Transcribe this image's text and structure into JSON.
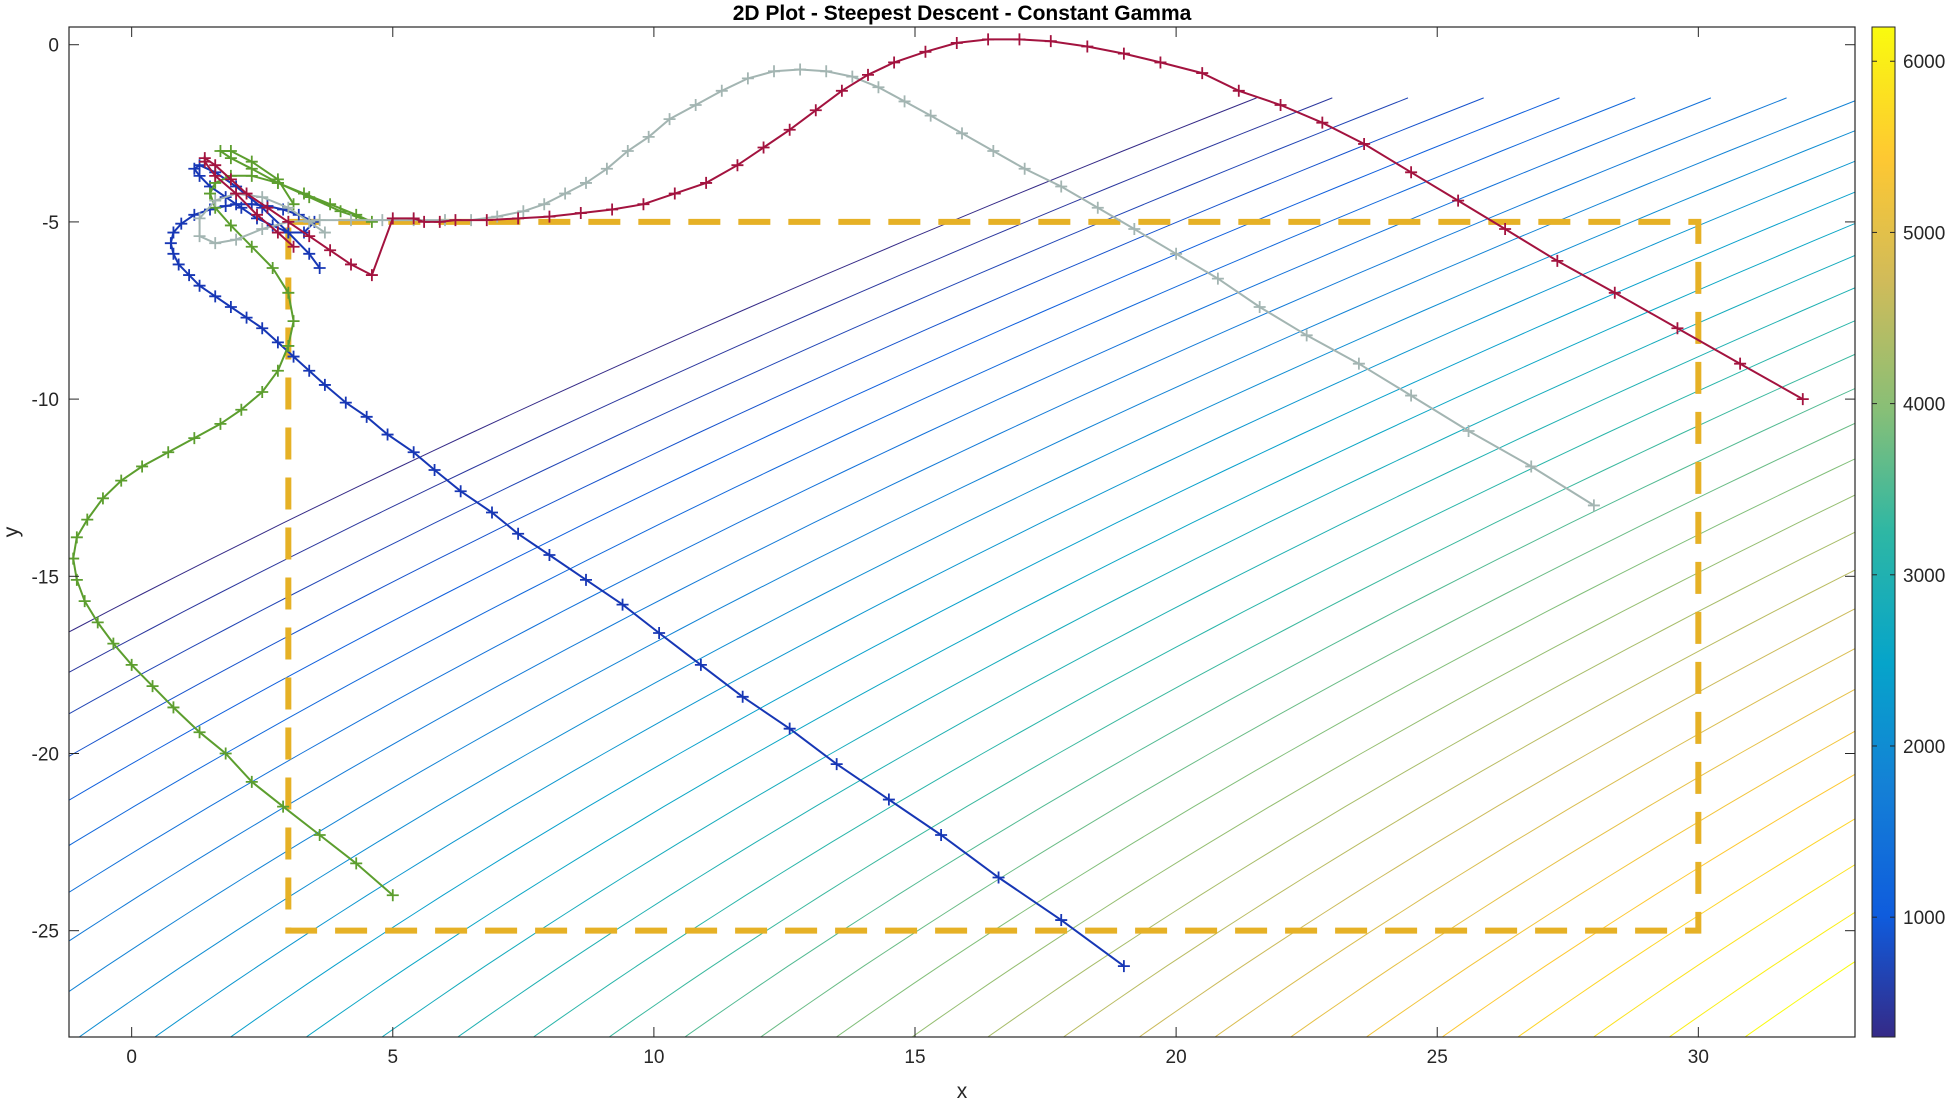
{
  "chart_data": {
    "type": "line",
    "title": "2D Plot - Steepest Descent - Constant Gamma",
    "xlabel": "x",
    "ylabel": "y",
    "xlim": [
      -1.2,
      33
    ],
    "ylim": [
      -28,
      0.5
    ],
    "xticks": [
      "0",
      "5",
      "10",
      "15",
      "20",
      "25",
      "30"
    ],
    "yticks": [
      "0",
      "-5",
      "-10",
      "-15",
      "-20",
      "-25"
    ],
    "grid": false,
    "legend": "none",
    "contour": {
      "colormap": "parula",
      "colorbar_ticks": [
        "1000",
        "2000",
        "3000",
        "4000",
        "5000",
        "6000"
      ],
      "colorbar_range": [
        300,
        6200
      ],
      "levels": 32
    },
    "constraint_box": {
      "x": [
        3,
        30
      ],
      "y": [
        -25,
        -5
      ],
      "color": "#e6b126",
      "style": "dashed"
    },
    "series": [
      {
        "color": "#1737b5",
        "marker": "+",
        "x": [
          19,
          17.8,
          16.6,
          15.5,
          14.5,
          13.5,
          12.6,
          11.7,
          10.9,
          10.1,
          9.4,
          8.7,
          8.0,
          7.4,
          6.9,
          6.3,
          5.8,
          5.4,
          4.9,
          4.5,
          4.1,
          3.7,
          3.4,
          3.1,
          2.8,
          2.5,
          2.2,
          1.9,
          1.6,
          1.3,
          1.1,
          0.9,
          0.8,
          0.75,
          0.8,
          0.95,
          1.2,
          1.5,
          1.8,
          2.0,
          2.3,
          2.6,
          2.9,
          3.2,
          3.5,
          3.3,
          3.0,
          2.7,
          2.4,
          2.1,
          1.8,
          1.5,
          1.3,
          1.2,
          1.3,
          1.6,
          2.0,
          2.5,
          3.0,
          3.4,
          3.6
        ],
        "y": [
          -26,
          -24.7,
          -23.5,
          -22.3,
          -21.3,
          -20.3,
          -19.3,
          -18.4,
          -17.5,
          -16.6,
          -15.8,
          -15.1,
          -14.4,
          -13.8,
          -13.2,
          -12.6,
          -12.0,
          -11.5,
          -11.0,
          -10.5,
          -10.1,
          -9.6,
          -9.2,
          -8.8,
          -8.4,
          -8.0,
          -7.7,
          -7.4,
          -7.1,
          -6.8,
          -6.5,
          -6.2,
          -5.9,
          -5.6,
          -5.3,
          -5.05,
          -4.8,
          -4.65,
          -4.55,
          -4.5,
          -4.5,
          -4.55,
          -4.65,
          -4.8,
          -5.0,
          -5.3,
          -5.3,
          -5.1,
          -4.9,
          -4.6,
          -4.3,
          -4.0,
          -3.7,
          -3.5,
          -3.4,
          -3.6,
          -4.0,
          -4.6,
          -5.3,
          -5.9,
          -6.3
        ]
      },
      {
        "color": "#5c9e2e",
        "marker": "+",
        "x": [
          5,
          4.3,
          3.6,
          2.9,
          2.3,
          1.8,
          1.3,
          0.8,
          0.4,
          0.0,
          -0.35,
          -0.65,
          -0.9,
          -1.05,
          -1.12,
          -1.05,
          -0.85,
          -0.55,
          -0.2,
          0.2,
          0.7,
          1.2,
          1.7,
          2.1,
          2.5,
          2.8,
          3.0,
          3.1,
          3.0,
          2.7,
          2.3,
          1.9,
          1.6,
          1.5,
          1.6,
          1.9,
          2.3,
          2.8,
          3.3,
          3.8,
          4.3,
          4.6,
          4.0,
          3.4,
          2.8,
          2.3,
          1.9,
          1.7,
          1.9,
          2.3,
          2.8,
          3.1
        ],
        "y": [
          -24,
          -23.1,
          -22.3,
          -21.5,
          -20.8,
          -20.0,
          -19.4,
          -18.7,
          -18.1,
          -17.5,
          -16.9,
          -16.3,
          -15.7,
          -15.1,
          -14.5,
          -13.9,
          -13.4,
          -12.8,
          -12.3,
          -11.9,
          -11.5,
          -11.1,
          -10.7,
          -10.3,
          -9.8,
          -9.2,
          -8.5,
          -7.8,
          -7.0,
          -6.3,
          -5.7,
          -5.1,
          -4.6,
          -4.2,
          -3.9,
          -3.7,
          -3.7,
          -3.9,
          -4.2,
          -4.5,
          -4.8,
          -5.0,
          -4.7,
          -4.3,
          -3.9,
          -3.5,
          -3.2,
          -3.0,
          -3.0,
          -3.3,
          -3.8,
          -4.5
        ]
      },
      {
        "color": "#a3b5b2",
        "marker": "+",
        "x": [
          28,
          26.8,
          25.6,
          24.5,
          23.5,
          22.5,
          21.6,
          20.8,
          20.0,
          19.2,
          18.5,
          17.8,
          17.1,
          16.5,
          15.9,
          15.3,
          14.8,
          14.3,
          13.8,
          13.3,
          12.8,
          12.3,
          11.8,
          11.3,
          10.8,
          10.3,
          9.9,
          9.5,
          9.1,
          8.7,
          8.3,
          7.9,
          7.5,
          7.0,
          6.5,
          6.0,
          5.4,
          4.8,
          4.2,
          3.6,
          3.0,
          2.5,
          2.0,
          1.6,
          1.3,
          1.3,
          1.6,
          2.0,
          2.5,
          3.0,
          3.4,
          3.7
        ],
        "y": [
          -13,
          -11.9,
          -10.9,
          -9.9,
          -9.0,
          -8.2,
          -7.4,
          -6.6,
          -5.9,
          -5.2,
          -4.6,
          -4.0,
          -3.5,
          -3.0,
          -2.5,
          -2.0,
          -1.6,
          -1.2,
          -0.9,
          -0.75,
          -0.7,
          -0.75,
          -0.95,
          -1.3,
          -1.7,
          -2.1,
          -2.6,
          -3.0,
          -3.5,
          -3.9,
          -4.2,
          -4.5,
          -4.7,
          -4.85,
          -4.95,
          -4.95,
          -4.95,
          -4.95,
          -4.95,
          -4.95,
          -5.0,
          -5.2,
          -5.5,
          -5.6,
          -5.4,
          -4.9,
          -4.4,
          -4.2,
          -4.3,
          -4.6,
          -5.0,
          -5.3
        ]
      },
      {
        "color": "#a3133f",
        "marker": "+",
        "x": [
          32,
          30.8,
          29.6,
          28.4,
          27.3,
          26.3,
          25.4,
          24.5,
          23.6,
          22.8,
          22.0,
          21.2,
          20.5,
          19.7,
          19.0,
          18.3,
          17.6,
          17.0,
          16.4,
          15.8,
          15.2,
          14.6,
          14.1,
          13.6,
          13.1,
          12.6,
          12.1,
          11.6,
          11.0,
          10.4,
          9.8,
          9.2,
          8.6,
          8.0,
          7.4,
          6.8,
          6.2,
          5.9,
          5.6,
          5.4,
          5.0,
          4.6,
          4.2,
          3.8,
          3.4,
          3.0,
          2.6,
          2.2,
          1.9,
          1.6,
          1.4,
          1.4,
          1.6,
          2.0,
          2.4,
          2.8,
          3.1
        ],
        "y": [
          -10,
          -9.0,
          -8.0,
          -7.0,
          -6.1,
          -5.2,
          -4.4,
          -3.6,
          -2.8,
          -2.2,
          -1.7,
          -1.3,
          -0.8,
          -0.5,
          -0.25,
          -0.05,
          0.1,
          0.15,
          0.15,
          0.05,
          -0.2,
          -0.5,
          -0.85,
          -1.3,
          -1.85,
          -2.4,
          -2.9,
          -3.4,
          -3.9,
          -4.2,
          -4.5,
          -4.65,
          -4.75,
          -4.85,
          -4.9,
          -4.95,
          -4.95,
          -5.0,
          -5.0,
          -4.9,
          -4.9,
          -6.5,
          -6.2,
          -5.8,
          -5.4,
          -5.0,
          -4.6,
          -4.2,
          -3.8,
          -3.4,
          -3.2,
          -3.3,
          -3.7,
          -4.2,
          -4.8,
          -5.3,
          -5.7
        ]
      }
    ]
  }
}
